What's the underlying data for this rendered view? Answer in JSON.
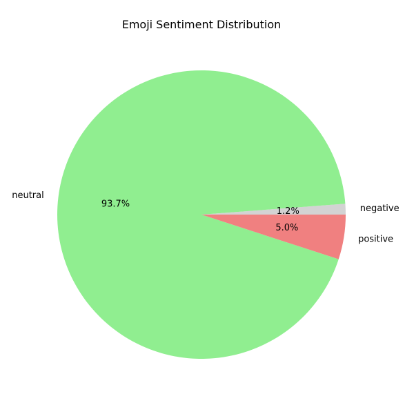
{
  "chart_data": {
    "type": "pie",
    "title": "Emoji Sentiment Distribution",
    "start_angle_deg": 0,
    "direction": "counterclockwise",
    "slices": [
      {
        "label": "negative",
        "value": 1.2,
        "pct_text": "1.2%",
        "color": "#d3d3d3"
      },
      {
        "label": "neutral",
        "value": 93.7,
        "pct_text": "93.7%",
        "color": "#90ee90"
      },
      {
        "label": "positive",
        "value": 5.0,
        "pct_text": "5.0%",
        "color": "#f08080"
      }
    ]
  }
}
